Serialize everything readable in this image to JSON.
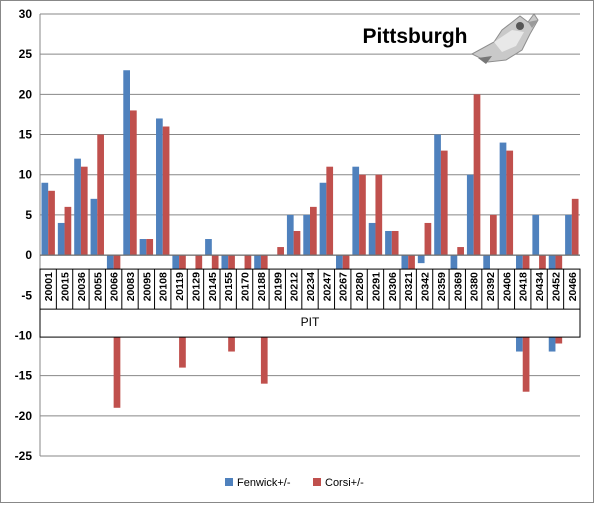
{
  "chart_data": {
    "type": "bar",
    "title": "Pittsburgh",
    "xlabel": "PIT",
    "ylabel": "",
    "ylim": [
      -25,
      30
    ],
    "ytick_step": 5,
    "grid": true,
    "legend_position": "bottom",
    "categories": [
      "20001",
      "20015",
      "20036",
      "20055",
      "20066",
      "20083",
      "20095",
      "20108",
      "20119",
      "20129",
      "20145",
      "20155",
      "20170",
      "20188",
      "20199",
      "20212",
      "20234",
      "20247",
      "20267",
      "20280",
      "20291",
      "20306",
      "20321",
      "20342",
      "20359",
      "20369",
      "20380",
      "20392",
      "20406",
      "20418",
      "20434",
      "20452",
      "20466"
    ],
    "series": [
      {
        "name": "Fenwick+/-",
        "color": "#4f81bd",
        "values": [
          9,
          4,
          12,
          7,
          -10,
          23,
          2,
          17,
          -3,
          0,
          2,
          -7,
          0,
          -3,
          0,
          5,
          5,
          9,
          -7,
          11,
          4,
          3,
          -7,
          -1,
          15,
          -3,
          10,
          -7,
          14,
          -12,
          5,
          -12,
          5
        ]
      },
      {
        "name": "Corsi+/-",
        "color": "#c0504d",
        "values": [
          8,
          6,
          11,
          15,
          -19,
          18,
          2,
          16,
          -14,
          -3,
          -2,
          -12,
          -3,
          -16,
          1,
          3,
          6,
          11,
          -10,
          10,
          10,
          3,
          -8,
          4,
          13,
          1,
          20,
          5,
          13,
          -17,
          -2,
          -11,
          7
        ]
      }
    ]
  }
}
